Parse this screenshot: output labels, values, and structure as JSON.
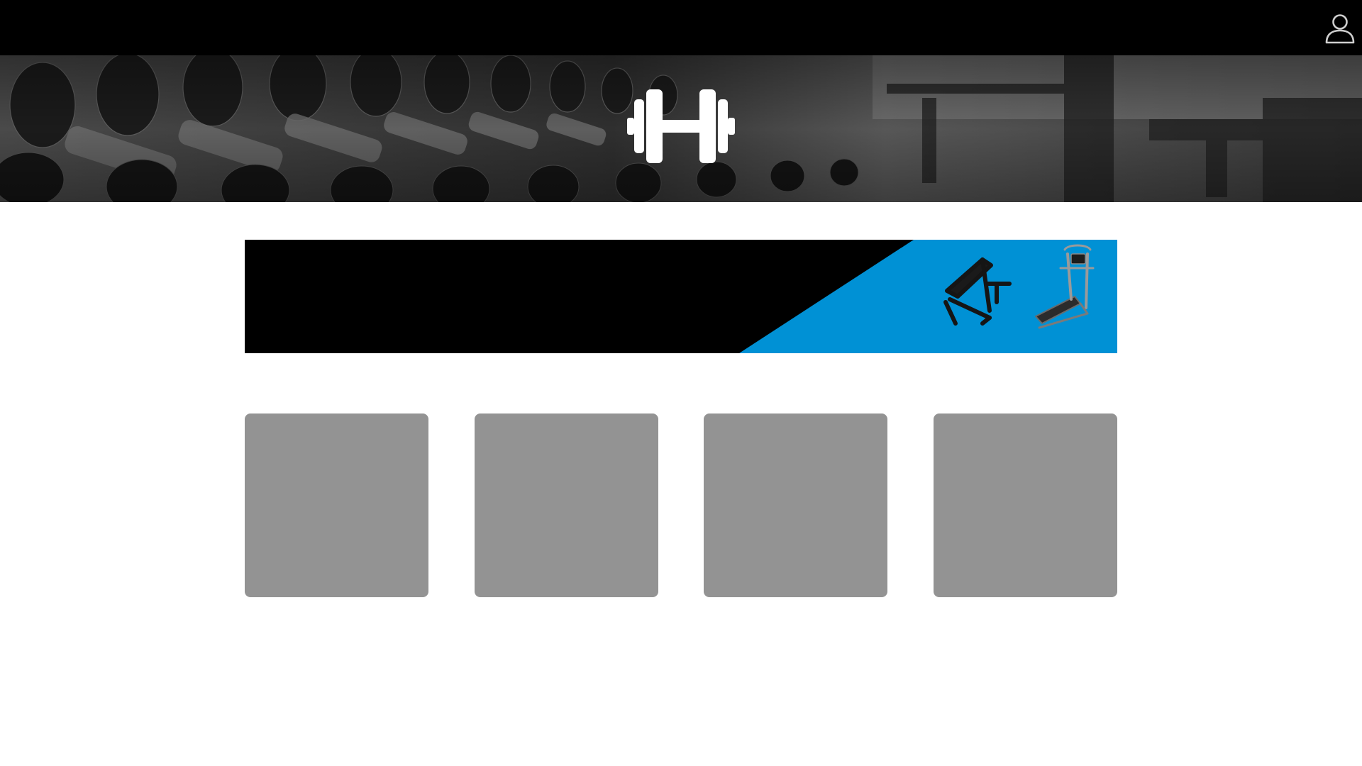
{
  "header": {
    "user_icon": "user-icon",
    "background": "#000000"
  },
  "hero": {
    "logo_icon": "dumbbell-icon",
    "image": "gym-dumbbell-rack-photo"
  },
  "promo_banner": {
    "accent": "#0091d5",
    "background": "#000000",
    "products": [
      "abdominal-bench-image",
      "incline-treadmill-image"
    ]
  },
  "tiles": {
    "count": 4,
    "color": "#939393"
  }
}
